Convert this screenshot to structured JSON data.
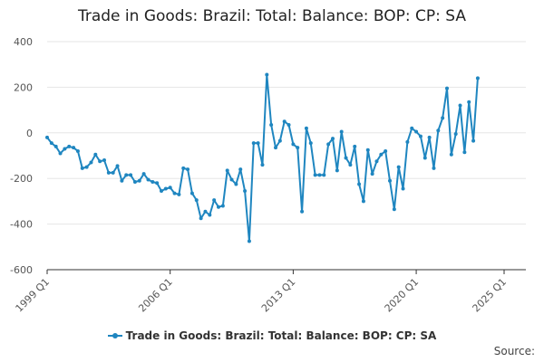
{
  "title": "Trade in Goods: Brazil: Total: Balance: BOP: CP: SA",
  "source_label": "Source:",
  "colors": {
    "series": "#1f86c0",
    "grid": "#e6e6e6",
    "axis": "#333333"
  },
  "chart_data": {
    "type": "line",
    "title": "Trade in Goods: Brazil: Total: Balance: BOP: CP: SA",
    "xlabel": "",
    "ylabel": "",
    "ylim": [
      -600,
      400
    ],
    "yticks": [
      400,
      200,
      0,
      -200,
      -400,
      -600
    ],
    "xticks": [
      "1999 Q1",
      "2006 Q1",
      "2013 Q1",
      "2020 Q1",
      "2025 Q1"
    ],
    "xtick_positions": [
      0,
      28,
      56,
      84,
      104
    ],
    "grid": "horizontal",
    "legend_position": "bottom",
    "series": [
      {
        "name": "Trade in Goods: Brazil: Total: Balance: BOP: CP: SA",
        "values": [
          -20,
          -45,
          -60,
          -90,
          -70,
          -60,
          -65,
          -80,
          -155,
          -150,
          -130,
          -95,
          -125,
          -120,
          -175,
          -175,
          -145,
          -210,
          -185,
          -185,
          -215,
          -210,
          -180,
          -205,
          -215,
          -220,
          -255,
          -245,
          -240,
          -265,
          -270,
          -155,
          -160,
          -265,
          -295,
          -375,
          -345,
          -360,
          -295,
          -325,
          -320,
          -165,
          -205,
          -225,
          -160,
          -255,
          -475,
          -45,
          -45,
          -140,
          255,
          35,
          -65,
          -35,
          50,
          35,
          -50,
          -65,
          -345,
          20,
          -45,
          -185,
          -185,
          -185,
          -50,
          -25,
          -165,
          5,
          -110,
          -140,
          -60,
          -225,
          -300,
          -75,
          -180,
          -125,
          -95,
          -80,
          -210,
          -335,
          -150,
          -245,
          -40,
          20,
          5,
          -15,
          -110,
          -20,
          -155,
          10,
          65,
          195,
          -95,
          -5,
          120,
          -85,
          135,
          -35,
          240
        ]
      }
    ]
  }
}
